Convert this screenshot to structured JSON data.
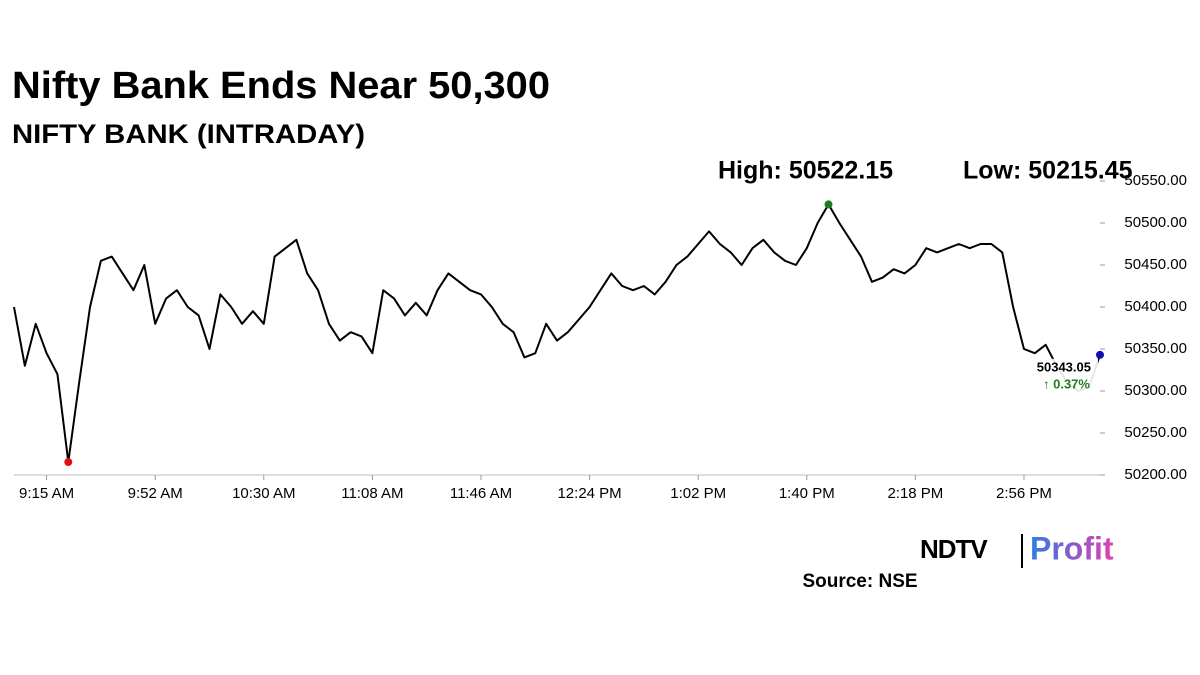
{
  "chart_data": {
    "type": "line",
    "title": "Nifty Bank Ends Near 50,300",
    "subtitle": "NIFTY BANK (INTRADAY)",
    "high_label": "High: 50522.15",
    "low_label": "Low: 50215.45",
    "last_label": "50343.05",
    "change_label": "↑ 0.37%",
    "color": "#000000",
    "high_color": "#1e7b1e",
    "low_color": "#e01010",
    "last_color": "#1010b0",
    "change_color": "#1e7b1e",
    "categories": [
      null,
      null,
      null,
      "9:15 AM",
      null,
      null,
      null,
      null,
      null,
      null,
      null,
      null,
      null,
      "9:52 AM",
      null,
      null,
      null,
      null,
      null,
      null,
      null,
      null,
      null,
      "10:30 AM",
      null,
      null,
      null,
      null,
      null,
      null,
      null,
      null,
      null,
      "11:08 AM",
      null,
      null,
      null,
      null,
      null,
      null,
      null,
      null,
      null,
      "11:46 AM",
      null,
      null,
      null,
      null,
      null,
      null,
      null,
      null,
      null,
      "12:24 PM",
      null,
      null,
      null,
      null,
      null,
      null,
      null,
      null,
      null,
      "1:02 PM",
      null,
      null,
      null,
      null,
      null,
      null,
      null,
      null,
      null,
      "1:40 PM",
      null,
      null,
      null,
      null,
      null,
      null,
      null,
      null,
      null,
      "2:18 PM",
      null,
      null,
      null,
      null,
      null,
      null,
      null,
      null,
      null,
      "2:56 PM",
      null,
      null,
      null,
      null,
      null,
      null,
      null
    ],
    "values": [
      50400,
      50330,
      50380,
      50345,
      50320,
      50215.45,
      50310,
      50400,
      50455,
      50460,
      50440,
      50420,
      50450,
      50380,
      50410,
      50420,
      50400,
      50390,
      50350,
      50415,
      50400,
      50380,
      50395,
      50380,
      50460,
      50470,
      50480,
      50440,
      50420,
      50380,
      50360,
      50370,
      50365,
      50345,
      50420,
      50410,
      50390,
      50405,
      50390,
      50420,
      50440,
      50430,
      50420,
      50415,
      50400,
      50380,
      50370,
      50340,
      50345,
      50380,
      50360,
      50370,
      50385,
      50400,
      50420,
      50440,
      50425,
      50420,
      50425,
      50415,
      50430,
      50450,
      50460,
      50475,
      50490,
      50475,
      50465,
      50450,
      50470,
      50480,
      50465,
      50455,
      50450,
      50470,
      50500,
      50522.15,
      50500,
      50480,
      50460,
      50430,
      50435,
      50445,
      50440,
      50450,
      50470,
      50465,
      50470,
      50475,
      50470,
      50475,
      50475,
      50465,
      50400,
      50350,
      50345,
      50355,
      50330,
      50310,
      50300,
      50305,
      50343.05
    ],
    "ylim": [
      50200,
      50550
    ],
    "yticks": [
      {
        "value": 50200,
        "label": "50200.00"
      },
      {
        "value": 50250,
        "label": "50250.00"
      },
      {
        "value": 50300,
        "label": "50300.00"
      },
      {
        "value": 50350,
        "label": "50350.00"
      },
      {
        "value": 50400,
        "label": "50400.00"
      },
      {
        "value": 50450,
        "label": "50450.00"
      },
      {
        "value": 50500,
        "label": "50500.00"
      },
      {
        "value": 50550,
        "label": "50550.00"
      }
    ]
  },
  "logo": {
    "brand": "NDTV",
    "product": "Profit"
  },
  "source": "Source: NSE"
}
